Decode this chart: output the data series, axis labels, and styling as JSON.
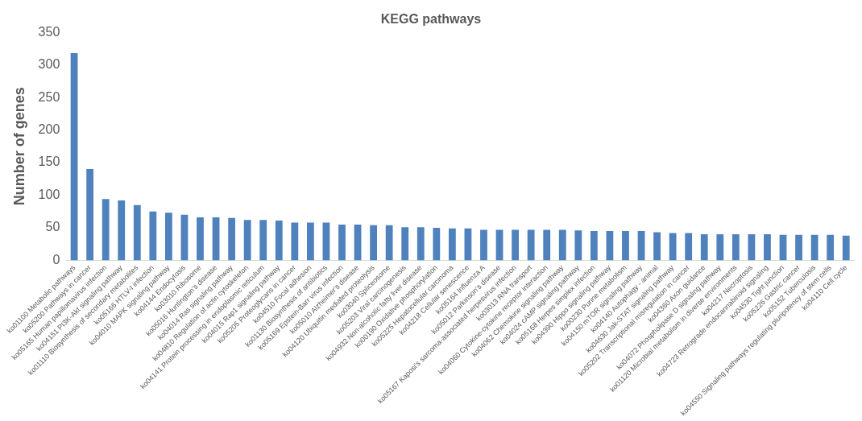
{
  "chart_data": {
    "type": "bar",
    "title": "KEGG pathways",
    "ylabel": "Number of genes",
    "categories": [
      "ko01100 Metabolic pathways",
      "ko05200 Pathways in cancer",
      "ko05165 Human papillomavirus infection",
      "ko04151 PI3K-Akt signaling pathway",
      "ko01110 Biosynthesis of secondary metabolites",
      "ko05166 HTLV-I infection",
      "ko04010 MAPK signaling pathway",
      "ko04144 Endocytosis",
      "ko03010 Ribosome",
      "ko05016 Huntington's disease",
      "ko04014 Ras signaling pathway",
      "ko04810 Regulation of actin cytoskeleton",
      "ko04141 Protein processing in endoplasmic reticulum",
      "ko04015 Rap1 signaling pathway",
      "ko05205 Proteoglycans in cancer",
      "ko04510 Focal adhesion",
      "ko01130 Biosynthesis of antibiotics",
      "ko05169 Epstein-Barr virus infection",
      "ko05010 Alzheimer's disease",
      "ko04120 Ubiquitin mediated proteolysis",
      "ko03040 Spliceosome",
      "ko05203 Viral carcinogenesis",
      "ko04932 Non-alcoholic fatty liver disease",
      "ko00190 Oxidative phosphorylation",
      "ko05225 Hepatocellular carcinoma",
      "ko04218 Cellular senescence",
      "ko05164 Influenza A",
      "ko05012 Parkinson's disease",
      "ko05167 Kaposi's sarcoma-associated herpesvirus infection",
      "ko03013 RNA transport",
      "ko04060 Cytokine-cytokine receptor interaction",
      "ko04062 Chemokine signaling pathway",
      "ko04024 cAMP signaling pathway",
      "ko05168 Herpes simplex infection",
      "ko04390 Hippo signaling pathway",
      "ko00230 Purine metabolism",
      "ko04150 mTOR signaling pathway",
      "ko04140 Autophagy - animal",
      "ko04630 Jak-STAT signaling pathway",
      "ko05202 Transcriptional misregulation in cancer",
      "ko04360 Axon guidance",
      "ko04072 Phospholipase D signaling pathway",
      "ko01120 Microbial metabolism in diverse environments",
      "ko04217 Necroptosis",
      "ko04723 Retrograde endocannabinoid signaling",
      "ko04530 Tight junction",
      "ko05226 Gastric cancer",
      "ko05152 Tuberculosis",
      "ko04550 Signaling pathways regulating pluripotency of stem cells",
      "ko04110 Cell cycle"
    ],
    "values": [
      318,
      140,
      94,
      92,
      85,
      75,
      73,
      70,
      66,
      66,
      65,
      62,
      62,
      61,
      58,
      58,
      58,
      55,
      55,
      54,
      54,
      51,
      51,
      50,
      49,
      49,
      47,
      47,
      47,
      47,
      47,
      47,
      46,
      45,
      45,
      45,
      45,
      43,
      42,
      42,
      40,
      40,
      40,
      40,
      40,
      39,
      39,
      39,
      39,
      38
    ],
    "color": "#4f81bd",
    "ylim": [
      0,
      350
    ],
    "yticks": [
      0,
      50,
      100,
      150,
      200,
      250,
      300,
      350
    ],
    "grid": false,
    "legend": false
  }
}
